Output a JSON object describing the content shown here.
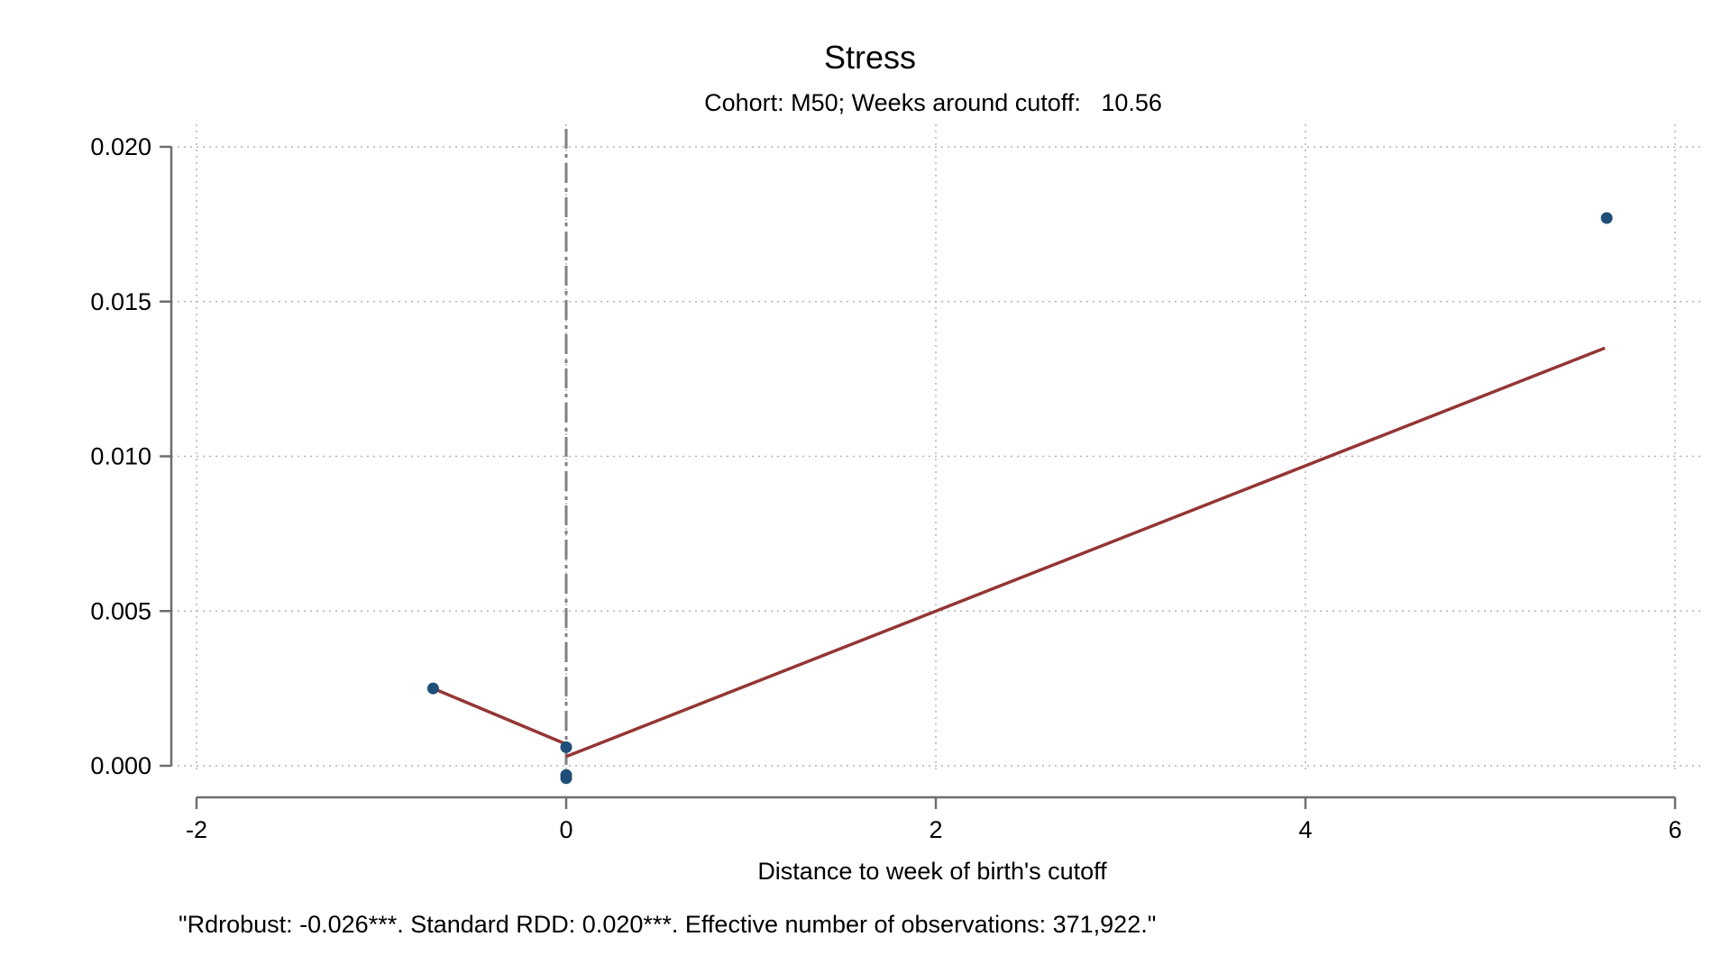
{
  "colors": {
    "point": "#1f4e79",
    "fit_line": "#943634",
    "cutoff": "#808080"
  },
  "chart_data": {
    "type": "scatter",
    "title": "Stress",
    "subtitle": "Cohort: M50; Weeks around cutoff:   10.56",
    "xlabel": "Distance to week of birth's cutoff",
    "ylabel": "",
    "note": "\"Rdrobust: -0.026***. Standard RDD: 0.020***. Effective number of observations: 371,922.\"",
    "xlim": [
      -2,
      6
    ],
    "ylim": [
      0.0,
      0.02
    ],
    "x_ticks": [
      -2,
      0,
      2,
      4,
      6
    ],
    "x_tick_labels": [
      "-2",
      "0",
      "2",
      "4",
      "6"
    ],
    "y_ticks": [
      0.0,
      0.005,
      0.01,
      0.015,
      0.02
    ],
    "y_tick_labels": [
      "0.000",
      "0.005",
      "0.010",
      "0.015",
      "0.020"
    ],
    "grid": true,
    "cutoff_x": 0,
    "series": [
      {
        "type": "scatter",
        "points": [
          {
            "x": -0.72,
            "y": 0.0025
          },
          {
            "x": 0.0,
            "y": 0.0006
          },
          {
            "x": 0.0,
            "y": -0.0003
          },
          {
            "x": 0.0,
            "y": -0.0004
          },
          {
            "x": 5.63,
            "y": 0.0177
          }
        ]
      },
      {
        "type": "line",
        "segment": "left",
        "points": [
          {
            "x": -0.72,
            "y": 0.0025
          },
          {
            "x": 0.0,
            "y": 0.0007
          }
        ]
      },
      {
        "type": "line",
        "segment": "right",
        "points": [
          {
            "x": 0.0,
            "y": 0.0003
          },
          {
            "x": 5.62,
            "y": 0.0135
          }
        ]
      }
    ]
  }
}
